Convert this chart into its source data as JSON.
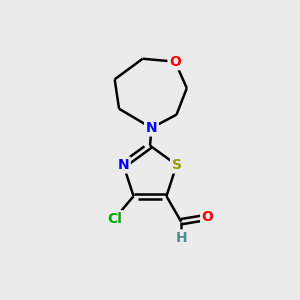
{
  "background_color": "#ebebeb",
  "bond_color": "#000000",
  "atom_colors": {
    "N": "#0000ff",
    "O": "#ff0000",
    "S": "#999900",
    "Cl": "#00aa00",
    "H": "#4a9090",
    "C": "#000000"
  },
  "figsize": [
    3.0,
    3.0
  ],
  "dpi": 100
}
